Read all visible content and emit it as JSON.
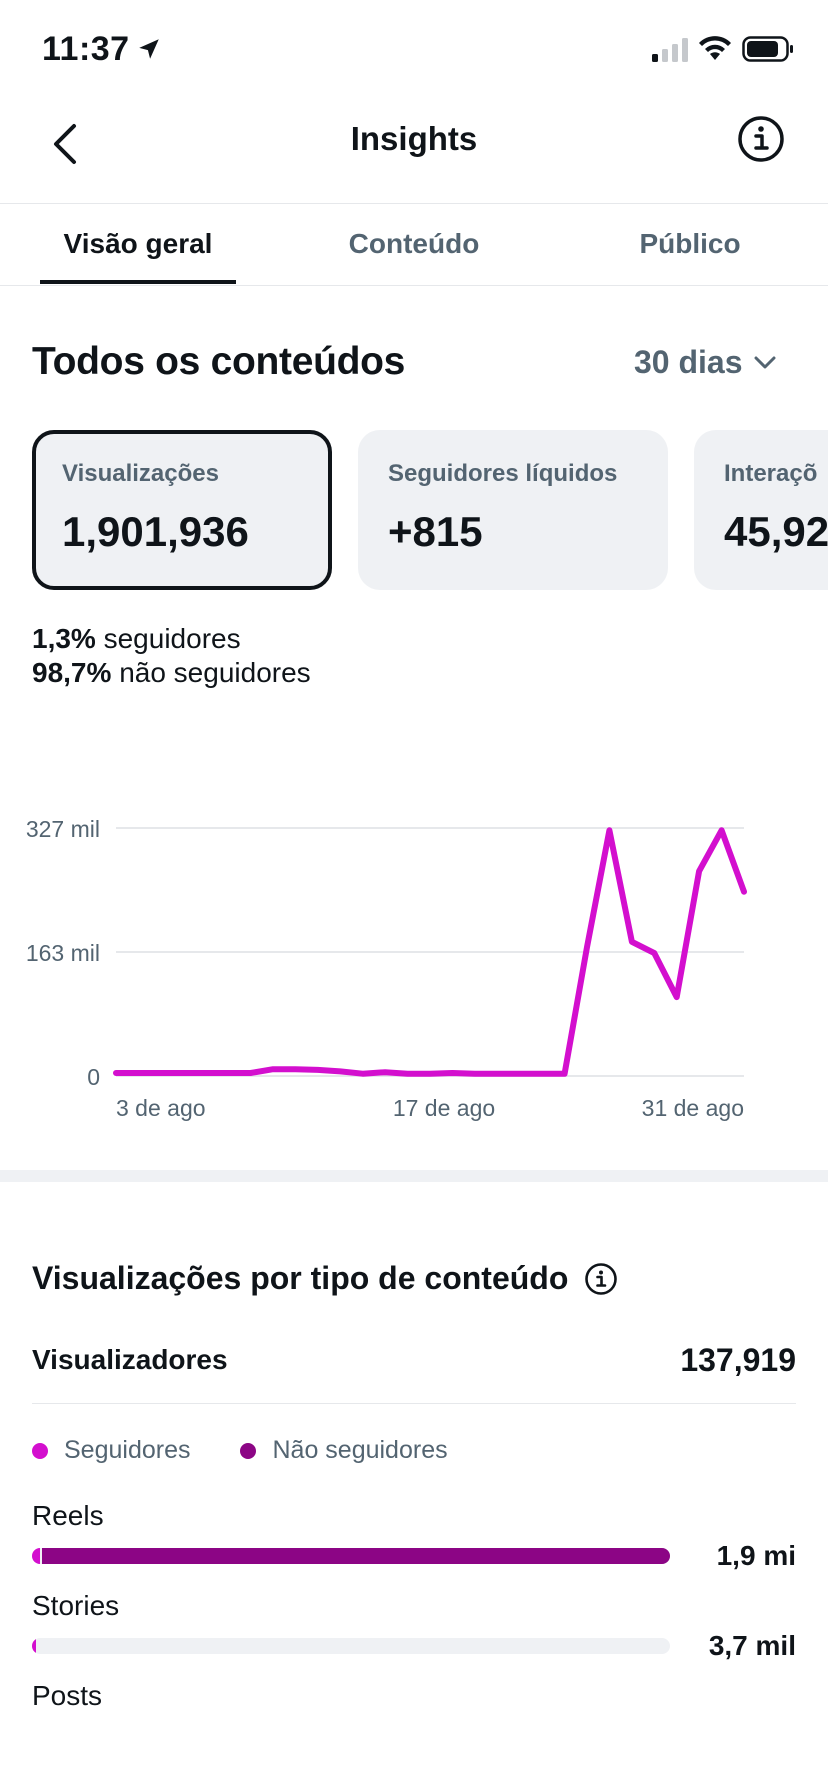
{
  "status_bar": {
    "time": "11:37"
  },
  "header": {
    "title": "Insights"
  },
  "tabs": [
    {
      "label": "Visão geral",
      "active": true
    },
    {
      "label": "Conteúdo",
      "active": false
    },
    {
      "label": "Público",
      "active": false
    }
  ],
  "overview": {
    "title": "Todos os conteúdos",
    "period": "30 dias",
    "cards": [
      {
        "label": "Visualizações",
        "value": "1,901,936",
        "selected": true
      },
      {
        "label": "Seguidores líquidos",
        "value": "+815",
        "selected": false
      },
      {
        "label": "Interaçõ",
        "value": "45,92",
        "selected": false
      }
    ],
    "breakdown": [
      {
        "pct": "1,3%",
        "text": "seguidores"
      },
      {
        "pct": "98,7%",
        "text": "não seguidores"
      }
    ]
  },
  "chart_data": {
    "type": "line",
    "x_ticks": [
      "3 de ago",
      "17 de ago",
      "31 de ago"
    ],
    "y_ticks": [
      "327 mil",
      "163 mil",
      "0"
    ],
    "ylim": [
      0,
      327000
    ],
    "grid": true,
    "color": "#d30fce",
    "series": [
      {
        "values": [
          4000,
          4000,
          4000,
          4000,
          4000,
          4000,
          4000,
          9000,
          9000,
          8000,
          6000,
          3000,
          5000,
          3000,
          3000,
          4000,
          3000,
          3000,
          3000,
          3000,
          3000,
          170000,
          324000,
          177000,
          162000,
          104000,
          270000,
          324000,
          243000
        ]
      }
    ]
  },
  "by_type": {
    "title": "Visualizações por tipo de conteúdo",
    "viewers_label": "Visualizadores",
    "viewers_value": "137,919",
    "legend": [
      {
        "label": "Seguidores",
        "color": "#d30fce"
      },
      {
        "label": "Não seguidores",
        "color": "#8c0585"
      }
    ],
    "rows": [
      {
        "label": "Reels",
        "value": "1,9 mi",
        "share": 1.0,
        "followers_fraction": 0.013
      },
      {
        "label": "Stories",
        "value": "3,7 mil",
        "share": 0.002,
        "followers_fraction": 1.0
      },
      {
        "label": "Posts"
      }
    ]
  }
}
